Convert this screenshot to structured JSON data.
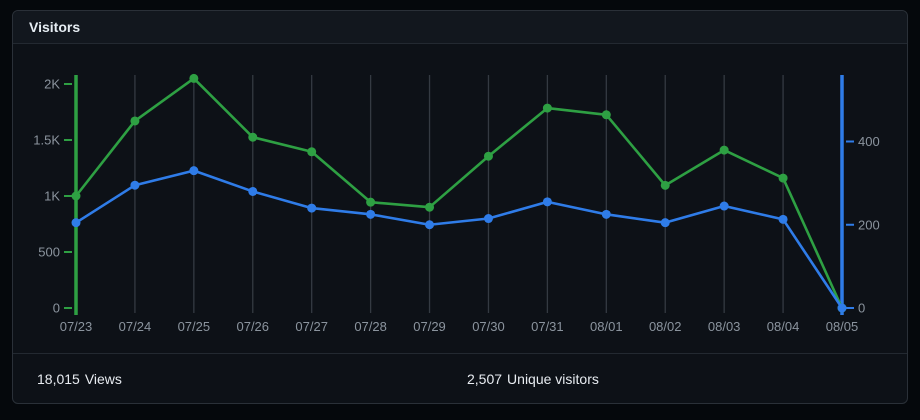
{
  "panel": {
    "title": "Visitors"
  },
  "footer": {
    "stats": [
      {
        "value": "18,015",
        "label": "Views"
      },
      {
        "value": "2,507",
        "label": "Unique visitors"
      }
    ]
  },
  "colors": {
    "views_green": "#2ea043",
    "unique_blue": "#2f7ce8",
    "gridline": "#343a42",
    "axis_label": "#8b949e",
    "panel_bg": "#0d1117",
    "page_bg": "#05080c",
    "border": "#2a3038",
    "text_primary": "#e6edf3"
  },
  "chart_data": {
    "type": "line",
    "title": "Visitors",
    "categories": [
      "07/23",
      "07/24",
      "07/25",
      "07/26",
      "07/27",
      "07/28",
      "07/29",
      "07/30",
      "07/31",
      "08/01",
      "08/02",
      "08/03",
      "08/04",
      "08/05"
    ],
    "series": [
      {
        "name": "Views",
        "axis": "left",
        "color": "#2ea043",
        "values": [
          1000,
          1670,
          2050,
          1525,
          1395,
          945,
          900,
          1355,
          1785,
          1725,
          1095,
          1410,
          1160,
          0
        ]
      },
      {
        "name": "Unique visitors",
        "axis": "right",
        "color": "#2f7ce8",
        "values": [
          205,
          295,
          330,
          280,
          240,
          225,
          200,
          215,
          255,
          225,
          205,
          245,
          213,
          0
        ]
      }
    ],
    "left_axis": {
      "ticks": [
        {
          "label": "0",
          "value": 0
        },
        {
          "label": "500",
          "value": 500
        },
        {
          "label": "1K",
          "value": 1000
        },
        {
          "label": "1.5K",
          "value": 1500
        },
        {
          "label": "2K",
          "value": 2000
        }
      ],
      "range": [
        0,
        2080
      ]
    },
    "right_axis": {
      "ticks": [
        {
          "label": "0",
          "value": 0
        },
        {
          "label": "200",
          "value": 200
        },
        {
          "label": "400",
          "value": 400
        }
      ],
      "range": [
        0,
        560
      ]
    },
    "grid": "vertical",
    "legend": "none",
    "totals": {
      "views": "18,015",
      "unique_visitors": "2,507"
    }
  }
}
